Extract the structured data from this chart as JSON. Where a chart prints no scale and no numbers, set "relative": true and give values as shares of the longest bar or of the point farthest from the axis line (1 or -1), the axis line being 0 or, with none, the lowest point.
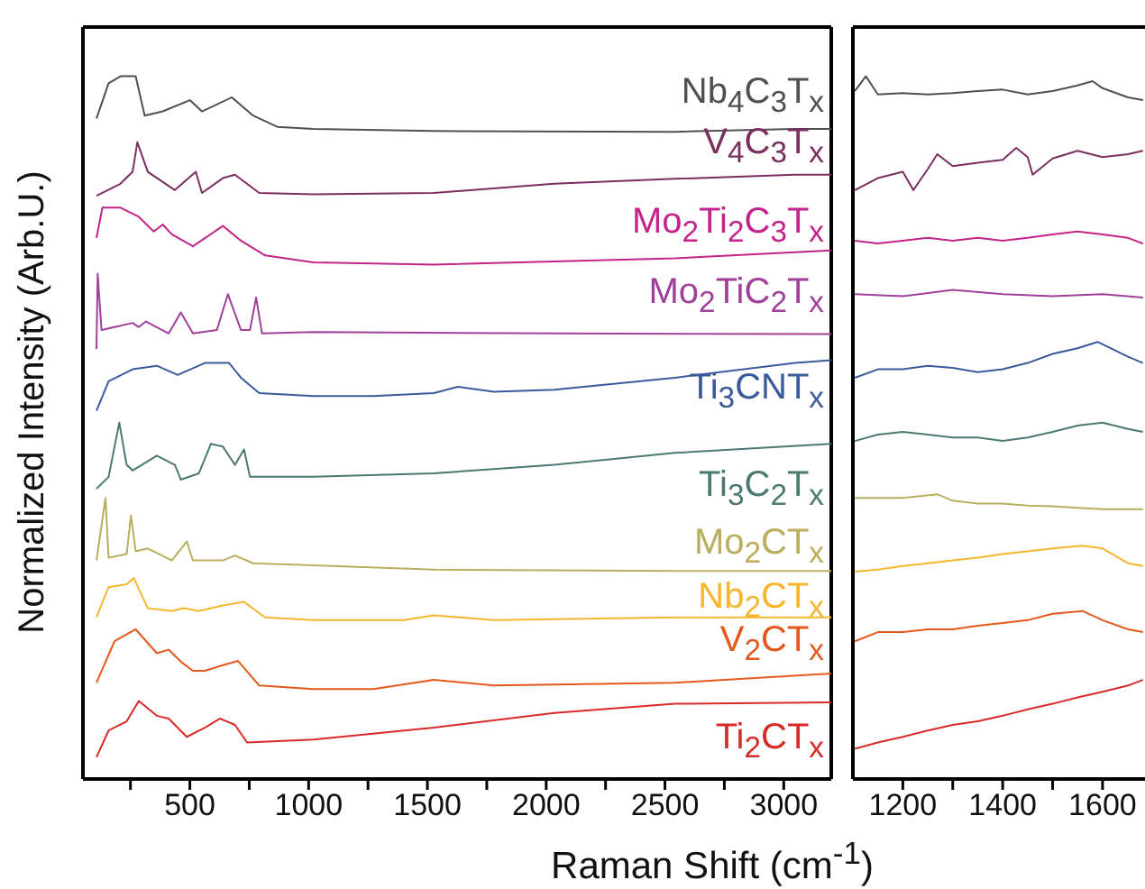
{
  "chart_data": [
    {
      "type": "line",
      "relative": true,
      "xlabel": "Raman Shift (cm$^{-1}$)",
      "ylabel": "Normalized Intensity (Arb.U.)",
      "xlim": [
        50,
        3200
      ],
      "xticks": [
        {
          "value": 250,
          "label": null
        },
        500,
        {
          "value": 750,
          "label": null
        },
        1000,
        {
          "value": 1250,
          "label": null
        },
        1500,
        {
          "value": 1750,
          "label": null
        },
        2000,
        {
          "value": 2250,
          "label": null
        },
        2500,
        {
          "value": 2750,
          "label": null
        },
        3000
      ],
      "series": [
        {
          "name": "Nb$_{4}$C$_{3}$T$_{x}$",
          "color": "#505050",
          "x": [
            107,
            158,
            208,
            272,
            310,
            386,
            500,
            551,
            677,
            766,
            868,
            1020,
            1527,
            2541,
            3048,
            3200
          ],
          "values": [
            0.94,
            0.99,
            1.0,
            1.0,
            0.944,
            0.95,
            0.966,
            0.95,
            0.97,
            0.944,
            0.928,
            0.925,
            0.922,
            0.921,
            0.925,
            0.925
          ]
        },
        {
          "name": "V$_{4}$C$_{3}$T$_{x}$",
          "color": "#7a2f5e",
          "x": [
            107,
            208,
            259,
            279,
            323,
            437,
            525,
            551,
            639,
            690,
            792,
            1020,
            1527,
            2034,
            2541,
            3048,
            3200
          ],
          "values": [
            0.83,
            0.847,
            0.864,
            0.906,
            0.864,
            0.838,
            0.864,
            0.834,
            0.855,
            0.86,
            0.834,
            0.832,
            0.834,
            0.847,
            0.854,
            0.86,
            0.86
          ]
        },
        {
          "name": "Mo$_{2}$Ti$_{2}$C$_{3}$T$_{x}$",
          "color": "#c4238a",
          "x": [
            107,
            132,
            208,
            285,
            348,
            386,
            424,
            513,
            639,
            715,
            817,
            1020,
            1527,
            2541,
            3200
          ],
          "values": [
            0.77,
            0.813,
            0.813,
            0.8,
            0.779,
            0.789,
            0.775,
            0.758,
            0.787,
            0.766,
            0.745,
            0.735,
            0.732,
            0.741,
            0.752
          ]
        },
        {
          "name": "Mo$_{2}$TiC$_{2}$T$_{x}$",
          "color": "#a0409a",
          "x": [
            107,
            112,
            128,
            183,
            259,
            285,
            315,
            411,
            462,
            513,
            614,
            660,
            715,
            753,
            779,
            804,
            1020,
            2034,
            3200
          ],
          "values": [
            0.612,
            0.719,
            0.639,
            0.643,
            0.649,
            0.643,
            0.651,
            0.634,
            0.664,
            0.634,
            0.639,
            0.69,
            0.639,
            0.639,
            0.685,
            0.634,
            0.636,
            0.634,
            0.633
          ]
        },
        {
          "name": "Ti$_{3}$CNT$_{x}$",
          "color": "#3a5a9c",
          "x": [
            107,
            158,
            259,
            361,
            449,
            563,
            665,
            715,
            792,
            1020,
            1273,
            1527,
            1628,
            1780,
            2034,
            2541,
            3048,
            3200
          ],
          "values": [
            0.524,
            0.566,
            0.583,
            0.588,
            0.575,
            0.592,
            0.592,
            0.571,
            0.549,
            0.545,
            0.545,
            0.549,
            0.558,
            0.551,
            0.554,
            0.571,
            0.592,
            0.596
          ]
        },
        {
          "name": "Ti$_{3}$C$_{2}$T$_{x}$",
          "color": "#4a7a72",
          "x": [
            107,
            158,
            203,
            234,
            259,
            361,
            437,
            462,
            538,
            589,
            639,
            690,
            728,
            753,
            1020,
            1527,
            2034,
            2541,
            3200
          ],
          "values": [
            0.413,
            0.43,
            0.507,
            0.447,
            0.439,
            0.46,
            0.447,
            0.426,
            0.435,
            0.477,
            0.473,
            0.447,
            0.469,
            0.43,
            0.43,
            0.435,
            0.447,
            0.464,
            0.477
          ]
        },
        {
          "name": "Mo$_{2}$CT$_{x}$",
          "color": "#b8ae5e",
          "x": [
            107,
            145,
            158,
            234,
            252,
            272,
            323,
            424,
            487,
            513,
            639,
            690,
            766,
            1020,
            1527,
            2541,
            3200
          ],
          "values": [
            0.311,
            0.4,
            0.315,
            0.32,
            0.375,
            0.324,
            0.328,
            0.311,
            0.338,
            0.311,
            0.311,
            0.318,
            0.307,
            0.304,
            0.298,
            0.296,
            0.296
          ]
        },
        {
          "name": "Nb$_{2}$CT$_{x}$",
          "color": "#f6b62e",
          "x": [
            107,
            158,
            234,
            264,
            323,
            424,
            475,
            538,
            639,
            728,
            817,
            1020,
            1400,
            1527,
            1780,
            2541,
            3200
          ],
          "values": [
            0.23,
            0.273,
            0.277,
            0.286,
            0.243,
            0.239,
            0.243,
            0.239,
            0.247,
            0.252,
            0.23,
            0.226,
            0.226,
            0.233,
            0.226,
            0.23,
            0.23
          ]
        },
        {
          "name": "V$_{2}$CT$_{x}$",
          "color": "#e4581c",
          "x": [
            107,
            183,
            272,
            361,
            411,
            462,
            513,
            563,
            639,
            703,
            792,
            1020,
            1273,
            1527,
            1780,
            2541,
            3200
          ],
          "values": [
            0.137,
            0.196,
            0.213,
            0.179,
            0.184,
            0.167,
            0.154,
            0.154,
            0.162,
            0.168,
            0.133,
            0.128,
            0.128,
            0.141,
            0.133,
            0.137,
            0.15
          ]
        },
        {
          "name": "Ti$_{2}$CT$_{x}$",
          "color": "#d92a2a",
          "x": [
            107,
            158,
            234,
            285,
            361,
            411,
            487,
            563,
            627,
            690,
            741,
            1020,
            1527,
            2034,
            2541,
            3200
          ],
          "values": [
            0.031,
            0.069,
            0.082,
            0.111,
            0.09,
            0.086,
            0.06,
            0.073,
            0.086,
            0.077,
            0.052,
            0.056,
            0.073,
            0.094,
            0.107,
            0.109
          ]
        }
      ]
    },
    {
      "type": "line",
      "relative": true,
      "xlim": [
        1100,
        1685
      ],
      "xticks": [
        1200,
        {
          "value": 1300,
          "label": null
        },
        1400,
        {
          "value": 1500,
          "label": null
        },
        1600
      ],
      "series": [
        {
          "color": "#505050",
          "x": [
            1104,
            1126,
            1150,
            1200,
            1250,
            1300,
            1350,
            1400,
            1450,
            1500,
            1550,
            1580,
            1600,
            1651,
            1681
          ],
          "values": [
            0.979,
            1.0,
            0.974,
            0.976,
            0.974,
            0.976,
            0.979,
            0.981,
            0.974,
            0.979,
            0.987,
            0.993,
            0.983,
            0.97,
            0.966
          ]
        },
        {
          "color": "#7a2f5e",
          "x": [
            1104,
            1150,
            1200,
            1221,
            1250,
            1269,
            1300,
            1350,
            1400,
            1427,
            1450,
            1460,
            1500,
            1550,
            1600,
            1651,
            1681
          ],
          "values": [
            0.838,
            0.855,
            0.864,
            0.838,
            0.868,
            0.889,
            0.872,
            0.877,
            0.881,
            0.898,
            0.885,
            0.86,
            0.883,
            0.894,
            0.885,
            0.889,
            0.894
          ]
        },
        {
          "color": "#c4238a",
          "x": [
            1104,
            1150,
            1200,
            1250,
            1300,
            1350,
            1400,
            1450,
            1500,
            1550,
            1600,
            1651,
            1681
          ],
          "values": [
            0.766,
            0.762,
            0.766,
            0.77,
            0.766,
            0.77,
            0.766,
            0.77,
            0.775,
            0.779,
            0.775,
            0.77,
            0.762
          ]
        },
        {
          "color": "#a0409a",
          "x": [
            1104,
            1200,
            1300,
            1400,
            1500,
            1600,
            1681
          ],
          "values": [
            0.69,
            0.687,
            0.696,
            0.69,
            0.687,
            0.69,
            0.685
          ]
        },
        {
          "color": "#3a5a9c",
          "x": [
            1104,
            1150,
            1200,
            1250,
            1300,
            1350,
            1400,
            1450,
            1500,
            1550,
            1590,
            1651,
            1681
          ],
          "values": [
            0.571,
            0.583,
            0.583,
            0.588,
            0.585,
            0.579,
            0.583,
            0.592,
            0.605,
            0.613,
            0.622,
            0.601,
            0.592
          ]
        },
        {
          "color": "#4a7a72",
          "x": [
            1104,
            1150,
            1200,
            1250,
            1300,
            1350,
            1400,
            1450,
            1500,
            1550,
            1600,
            1651,
            1681
          ],
          "values": [
            0.481,
            0.49,
            0.494,
            0.49,
            0.486,
            0.486,
            0.481,
            0.486,
            0.494,
            0.503,
            0.507,
            0.498,
            0.494
          ]
        },
        {
          "color": "#b8ae5e",
          "x": [
            1104,
            1200,
            1270,
            1300,
            1350,
            1400,
            1450,
            1500,
            1550,
            1600,
            1681
          ],
          "values": [
            0.4,
            0.4,
            0.405,
            0.396,
            0.392,
            0.392,
            0.389,
            0.388,
            0.386,
            0.384,
            0.384
          ]
        },
        {
          "color": "#f6b62e",
          "x": [
            1104,
            1150,
            1200,
            1250,
            1300,
            1350,
            1400,
            1450,
            1500,
            1560,
            1600,
            1651,
            1681
          ],
          "values": [
            0.295,
            0.298,
            0.303,
            0.307,
            0.311,
            0.315,
            0.32,
            0.324,
            0.328,
            0.332,
            0.328,
            0.307,
            0.303
          ]
        },
        {
          "color": "#e4581c",
          "x": [
            1104,
            1150,
            1200,
            1250,
            1300,
            1350,
            1400,
            1450,
            1500,
            1560,
            1600,
            1651,
            1681
          ],
          "values": [
            0.196,
            0.209,
            0.209,
            0.213,
            0.213,
            0.218,
            0.222,
            0.226,
            0.235,
            0.239,
            0.226,
            0.213,
            0.209
          ]
        },
        {
          "color": "#d92a2a",
          "x": [
            1104,
            1150,
            1200,
            1250,
            1300,
            1350,
            1400,
            1450,
            1500,
            1550,
            1600,
            1651,
            1681
          ],
          "values": [
            0.043,
            0.052,
            0.06,
            0.069,
            0.077,
            0.082,
            0.09,
            0.099,
            0.107,
            0.116,
            0.124,
            0.133,
            0.141
          ]
        }
      ]
    }
  ]
}
